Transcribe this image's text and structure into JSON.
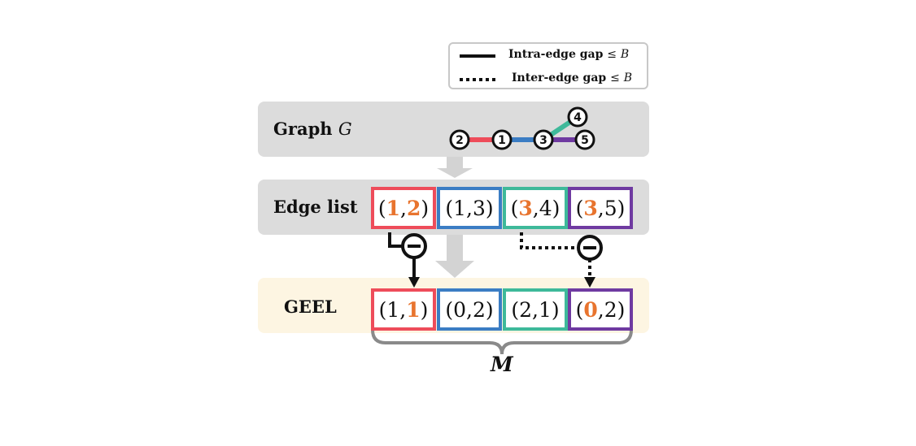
{
  "legend": {
    "solid_label": "Intra-edge gap",
    "dotted_label": "Inter-edge gap",
    "relation": "≤",
    "bound_symbol": "B"
  },
  "rows": {
    "graph": {
      "label": "Graph",
      "symbol": "G"
    },
    "edge_list": {
      "label": "Edge list"
    },
    "geel": {
      "label": "GEEL"
    }
  },
  "graph_nodes": [
    {
      "id": "2",
      "label": "2"
    },
    {
      "id": "1",
      "label": "1"
    },
    {
      "id": "3",
      "label": "3"
    },
    {
      "id": "4",
      "label": "4"
    },
    {
      "id": "5",
      "label": "5"
    }
  ],
  "graph_edges": [
    {
      "from": "2",
      "to": "1",
      "color": "#ee4c5a"
    },
    {
      "from": "1",
      "to": "3",
      "color": "#3b7dc4"
    },
    {
      "from": "3",
      "to": "4",
      "color": "#3eb99a"
    },
    {
      "from": "3",
      "to": "5",
      "color": "#6f3aa1"
    }
  ],
  "edge_list": [
    {
      "a": "1",
      "b": "2",
      "a_hl": true,
      "b_hl": true,
      "color": "#ee4c5a"
    },
    {
      "a": "1",
      "b": "3",
      "a_hl": false,
      "b_hl": false,
      "color": "#3b7dc4"
    },
    {
      "a": "3",
      "b": "4",
      "a_hl": true,
      "b_hl": false,
      "color": "#3eb99a"
    },
    {
      "a": "3",
      "b": "5",
      "a_hl": true,
      "b_hl": false,
      "color": "#6f3aa1"
    }
  ],
  "geel": [
    {
      "a": "1",
      "b": "1",
      "a_hl": false,
      "b_hl": true,
      "color": "#ee4c5a"
    },
    {
      "a": "0",
      "b": "2",
      "a_hl": false,
      "b_hl": false,
      "color": "#3b7dc4"
    },
    {
      "a": "2",
      "b": "1",
      "a_hl": false,
      "b_hl": false,
      "color": "#3eb99a"
    },
    {
      "a": "0",
      "b": "2",
      "a_hl": true,
      "b_hl": false,
      "color": "#6f3aa1"
    }
  ],
  "brace_label": "M",
  "colors": {
    "highlight": "#e8742e",
    "panel_gray": "#dcdcdc",
    "panel_cream": "#fdf5e2",
    "arrow_gray": "#d3d3d3",
    "brace_gray": "#8a8a8a"
  }
}
